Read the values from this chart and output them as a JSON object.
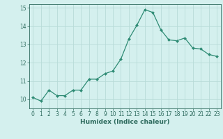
{
  "x": [
    0,
    1,
    2,
    3,
    4,
    5,
    6,
    7,
    8,
    9,
    10,
    11,
    12,
    13,
    14,
    15,
    16,
    17,
    18,
    19,
    20,
    21,
    22,
    23
  ],
  "y": [
    10.1,
    9.9,
    10.5,
    10.2,
    10.2,
    10.5,
    10.5,
    11.1,
    11.1,
    11.4,
    11.55,
    12.2,
    13.3,
    14.05,
    14.9,
    14.75,
    13.8,
    13.25,
    13.2,
    13.35,
    12.8,
    12.75,
    12.45,
    12.35
  ],
  "xlabel": "Humidex (Indice chaleur)",
  "ylim": [
    9.5,
    15.2
  ],
  "xlim": [
    -0.5,
    23.5
  ],
  "line_color": "#2e8b74",
  "marker_color": "#2e8b74",
  "bg_color": "#d4f0ee",
  "grid_color": "#b8dbd8",
  "yticks": [
    10,
    11,
    12,
    13,
    14,
    15
  ],
  "xticks": [
    0,
    1,
    2,
    3,
    4,
    5,
    6,
    7,
    8,
    9,
    10,
    11,
    12,
    13,
    14,
    15,
    16,
    17,
    18,
    19,
    20,
    21,
    22,
    23
  ],
  "tick_color": "#2e6b5e",
  "label_color": "#2e6b5e"
}
